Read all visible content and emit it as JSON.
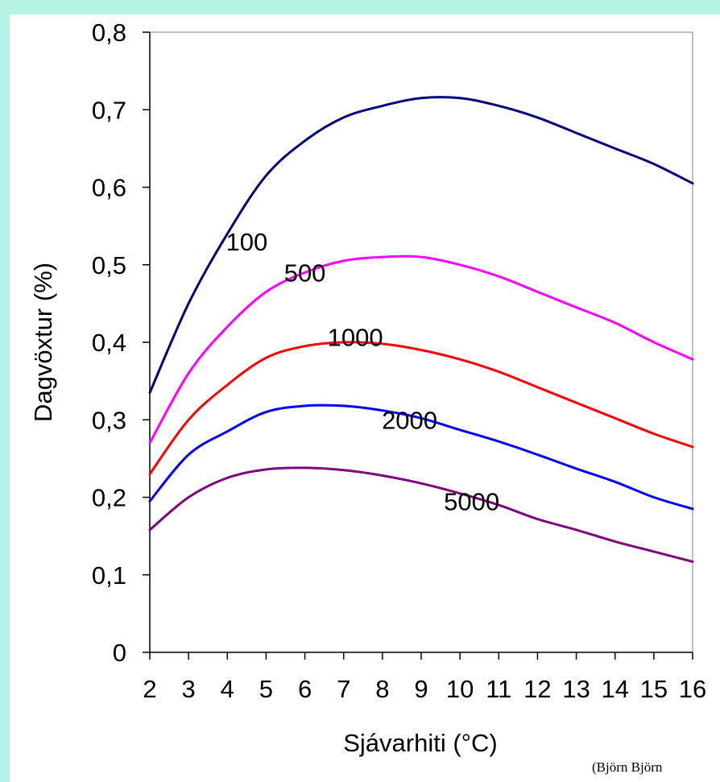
{
  "chart_data": {
    "type": "line",
    "title": "",
    "xlabel": "Sjávarhiti (°C)",
    "ylabel": "Dagvöxtur (%)",
    "x": [
      2,
      3,
      4,
      5,
      6,
      7,
      8,
      9,
      10,
      11,
      12,
      13,
      14,
      15,
      16
    ],
    "x_tick_labels": [
      "2",
      "3",
      "4",
      "5",
      "6",
      "7",
      "8",
      "9",
      "10",
      "11",
      "12",
      "13",
      "14",
      "15",
      "16"
    ],
    "y_tick_labels": [
      "0",
      "0,1",
      "0,2",
      "0,3",
      "0,4",
      "0,5",
      "0,6",
      "0,7",
      "0,8"
    ],
    "xlim": [
      2,
      16
    ],
    "ylim": [
      0,
      0.8
    ],
    "grid": false,
    "legend": "none",
    "series": [
      {
        "name": "100",
        "color": "#000080",
        "values": [
          0.335,
          0.45,
          0.54,
          0.615,
          0.66,
          0.69,
          0.705,
          0.715,
          0.715,
          0.705,
          0.69,
          0.67,
          0.65,
          0.63,
          0.605
        ],
        "label_at": [
          4.5,
          0.53
        ]
      },
      {
        "name": "500",
        "color": "#ff00ff",
        "values": [
          0.27,
          0.36,
          0.42,
          0.465,
          0.49,
          0.505,
          0.51,
          0.51,
          0.5,
          0.485,
          0.465,
          0.445,
          0.425,
          0.4,
          0.378
        ],
        "label_at": [
          6.0,
          0.49
        ]
      },
      {
        "name": "1000",
        "color": "#ff0000",
        "values": [
          0.23,
          0.3,
          0.345,
          0.38,
          0.395,
          0.4,
          0.398,
          0.39,
          0.378,
          0.362,
          0.342,
          0.322,
          0.302,
          0.282,
          0.265
        ],
        "label_at": [
          7.3,
          0.407
        ]
      },
      {
        "name": "2000",
        "color": "#0000ff",
        "values": [
          0.195,
          0.255,
          0.285,
          0.31,
          0.318,
          0.318,
          0.312,
          0.302,
          0.287,
          0.272,
          0.255,
          0.237,
          0.22,
          0.2,
          0.185
        ],
        "label_at": [
          8.7,
          0.3
        ]
      },
      {
        "name": "5000",
        "color": "#800080",
        "values": [
          0.158,
          0.2,
          0.225,
          0.236,
          0.238,
          0.235,
          0.228,
          0.218,
          0.205,
          0.19,
          0.172,
          0.158,
          0.143,
          0.13,
          0.117
        ],
        "label_at": [
          10.3,
          0.195
        ]
      }
    ]
  },
  "credit": "(Björn Björn"
}
